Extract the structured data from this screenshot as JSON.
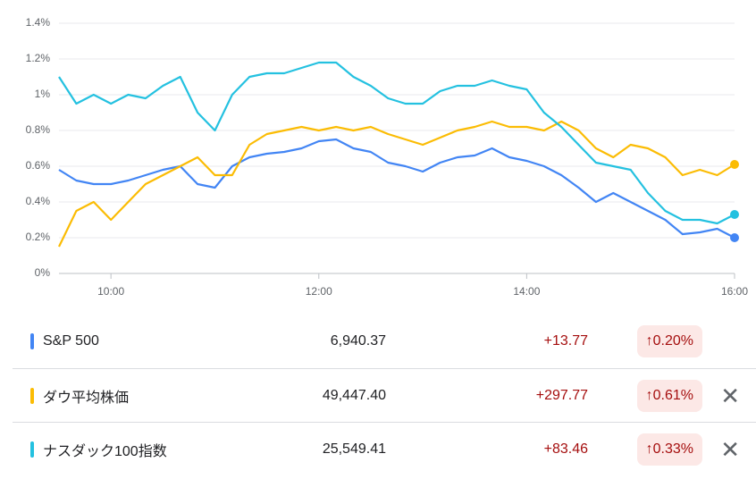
{
  "chart_data": {
    "type": "line",
    "x": [
      570,
      580,
      590,
      600,
      610,
      620,
      630,
      640,
      650,
      660,
      670,
      680,
      690,
      700,
      710,
      720,
      730,
      740,
      750,
      760,
      770,
      780,
      790,
      800,
      810,
      820,
      830,
      840,
      850,
      860,
      870,
      880,
      890,
      900,
      910,
      920,
      930,
      940,
      950,
      960
    ],
    "xlim": [
      570,
      960
    ],
    "xticks": [
      {
        "value": 600,
        "label": "10:00"
      },
      {
        "value": 720,
        "label": "12:00"
      },
      {
        "value": 840,
        "label": "14:00"
      },
      {
        "value": 960,
        "label": "16:00"
      }
    ],
    "ylim": [
      0,
      1.4
    ],
    "yticks": [
      {
        "value": 0,
        "label": "0%"
      },
      {
        "value": 0.2,
        "label": "0.2%"
      },
      {
        "value": 0.4,
        "label": "0.4%"
      },
      {
        "value": 0.6,
        "label": "0.6%"
      },
      {
        "value": 0.8,
        "label": "0.8%"
      },
      {
        "value": 1,
        "label": "1%"
      },
      {
        "value": 1.2,
        "label": "1.2%"
      },
      {
        "value": 1.4,
        "label": "1.4%"
      }
    ],
    "grid": true,
    "series": [
      {
        "name": "S&P 500",
        "color": "#4285f4",
        "values": [
          0.58,
          0.52,
          0.5,
          0.5,
          0.52,
          0.55,
          0.58,
          0.6,
          0.5,
          0.48,
          0.6,
          0.65,
          0.67,
          0.68,
          0.7,
          0.74,
          0.75,
          0.7,
          0.68,
          0.62,
          0.6,
          0.57,
          0.62,
          0.65,
          0.66,
          0.7,
          0.65,
          0.63,
          0.6,
          0.55,
          0.48,
          0.4,
          0.45,
          0.4,
          0.35,
          0.3,
          0.22,
          0.23,
          0.25,
          0.2
        ]
      },
      {
        "name": "ダウ平均株価",
        "color": "#fbbc04",
        "values": [
          0.15,
          0.35,
          0.4,
          0.3,
          0.4,
          0.5,
          0.55,
          0.6,
          0.65,
          0.55,
          0.55,
          0.72,
          0.78,
          0.8,
          0.82,
          0.8,
          0.82,
          0.8,
          0.82,
          0.78,
          0.75,
          0.72,
          0.76,
          0.8,
          0.82,
          0.85,
          0.82,
          0.82,
          0.8,
          0.85,
          0.8,
          0.7,
          0.65,
          0.72,
          0.7,
          0.65,
          0.55,
          0.58,
          0.55,
          0.61
        ]
      },
      {
        "name": "ナスダック100指数",
        "color": "#24c1e0",
        "values": [
          1.1,
          0.95,
          1.0,
          0.95,
          1.0,
          0.98,
          1.05,
          1.1,
          0.9,
          0.8,
          1.0,
          1.1,
          1.12,
          1.12,
          1.15,
          1.18,
          1.18,
          1.1,
          1.05,
          0.98,
          0.95,
          0.95,
          1.02,
          1.05,
          1.05,
          1.08,
          1.05,
          1.03,
          0.9,
          0.82,
          0.72,
          0.62,
          0.6,
          0.58,
          0.45,
          0.35,
          0.3,
          0.3,
          0.28,
          0.33
        ]
      }
    ]
  },
  "table": {
    "rows": [
      [
        "S&P 500",
        "6,940.37",
        "+13.77",
        "0.20%"
      ],
      [
        "ダウ平均株価",
        "49,447.40",
        "+297.77",
        "0.61%"
      ],
      [
        "ナスダック100指数",
        "25,549.41",
        "+83.46",
        "0.33%"
      ]
    ]
  }
}
